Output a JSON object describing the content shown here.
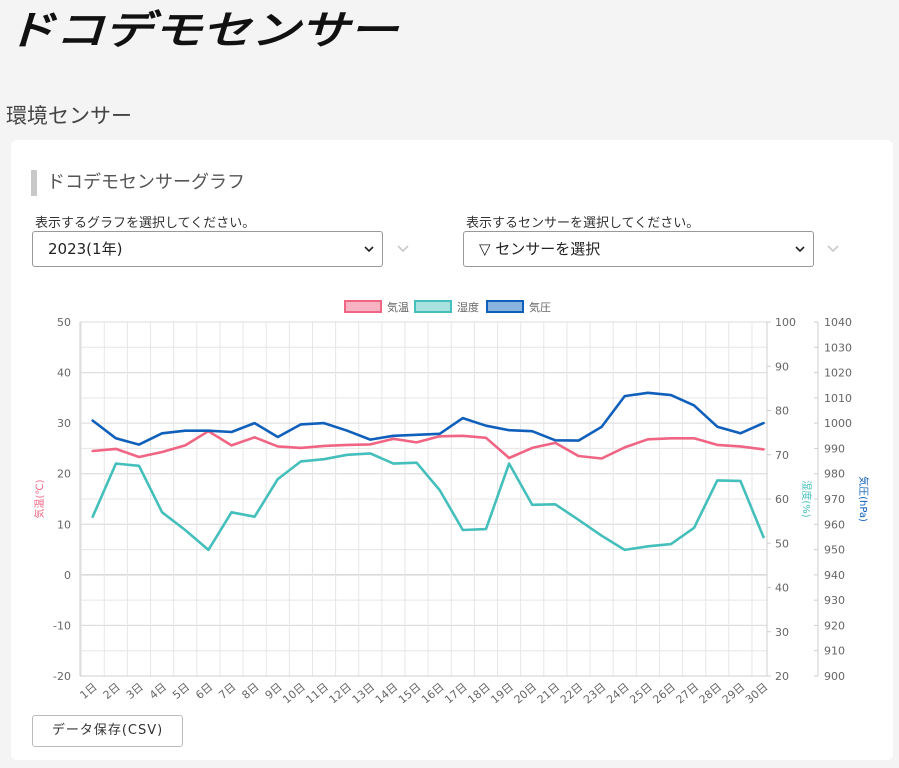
{
  "logo": {
    "text": "ドコデモセンサー"
  },
  "page_title": "環境センサー",
  "section_title": "ドコデモセンサーグラフ",
  "graph_select": {
    "label": "表示するグラフを選択してください。",
    "value": "2023(1年)"
  },
  "sensor_select": {
    "label": "表示するセンサーを選択してください。",
    "value": "▽ センサーを選択"
  },
  "csv_button": "データ保存(CSV)",
  "colors": {
    "temp": "#f06583",
    "humidity": "#45bfbb",
    "pressure": "#1060bb"
  },
  "chart_data": {
    "type": "line",
    "categories": [
      "1日",
      "2日",
      "3日",
      "4日",
      "5日",
      "6日",
      "7日",
      "8日",
      "9日",
      "10日",
      "11日",
      "12日",
      "13日",
      "14日",
      "15日",
      "16日",
      "17日",
      "18日",
      "19日",
      "20日",
      "21日",
      "22日",
      "23日",
      "24日",
      "25日",
      "26日",
      "27日",
      "28日",
      "29日",
      "30日"
    ],
    "legend_position": "top",
    "grid": true,
    "series": [
      {
        "name": "気温",
        "axis": "temp",
        "color": "#f06583",
        "values": [
          24.5,
          24.9,
          23.3,
          24.3,
          25.6,
          28.4,
          25.6,
          27.2,
          25.4,
          25.1,
          25.5,
          25.7,
          25.8,
          26.9,
          26.2,
          27.4,
          27.5,
          27.1,
          23.1,
          25.1,
          26.1,
          23.5,
          23.0,
          25.2,
          26.8,
          27.0,
          27.0,
          25.7,
          25.4,
          24.8
        ]
      },
      {
        "name": "湿度",
        "axis": "humidity",
        "color": "#45bfbb",
        "values": [
          56,
          68,
          67.5,
          57,
          53,
          48.5,
          57,
          56,
          64.5,
          68.5,
          69,
          70,
          70.3,
          68,
          68.2,
          62,
          53,
          53.2,
          68,
          58.7,
          58.8,
          55.3,
          51.7,
          48.5,
          49.3,
          49.8,
          53.5,
          64.2,
          64.1,
          51.4
        ]
      },
      {
        "name": "気圧",
        "axis": "pressure",
        "color": "#1060bb",
        "values": [
          1001,
          994,
          991.5,
          996,
          997,
          997,
          996.5,
          1000,
          994.5,
          999.5,
          1000,
          997,
          993.5,
          995,
          995.4,
          995.8,
          1002,
          999,
          997.2,
          996.8,
          993.2,
          993.1,
          998.5,
          1010.7,
          1012,
          1011.1,
          1007,
          998.6,
          996,
          1000
        ]
      }
    ],
    "axes": {
      "temp": {
        "label": "気温(℃)",
        "range": [
          -20,
          50
        ],
        "ticks": [
          -20,
          -10,
          0,
          10,
          20,
          30,
          40,
          50
        ]
      },
      "humidity": {
        "label": "湿度(%)",
        "range": [
          20,
          100
        ],
        "ticks": [
          20,
          30,
          40,
          50,
          60,
          70,
          80,
          90,
          100
        ]
      },
      "pressure": {
        "label": "気圧(hPa)",
        "range": [
          900,
          1040
        ],
        "ticks": [
          900,
          910,
          920,
          930,
          940,
          950,
          960,
          970,
          980,
          990,
          1000,
          1010,
          1020,
          1030,
          1040
        ]
      }
    }
  }
}
